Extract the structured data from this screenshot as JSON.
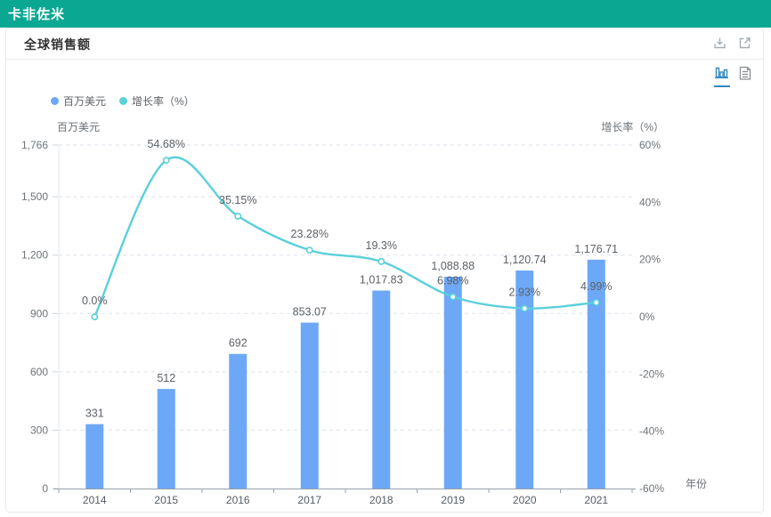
{
  "header": {
    "title": "卡非佐米"
  },
  "card": {
    "title": "全球销售额",
    "action_icons": [
      "download-icon",
      "external-link-icon"
    ],
    "toolbar_icons": [
      "bar-chart-icon",
      "data-view-icon"
    ]
  },
  "legend": [
    {
      "label": "百万美元",
      "color": "#6da8f7"
    },
    {
      "label": "增长率（%）",
      "color": "#5ad0da"
    }
  ],
  "colors": {
    "header_bg": "#0aa893",
    "bar": "#6da8f7",
    "line": "#5ad0da",
    "grid": "#dbe3ee",
    "left_axis_line": "#e2e8f2",
    "x_axis_line": "#98a0a8",
    "tick_text": "#6e7479",
    "label_text": "#5d6166",
    "active_icon": "#3389bd",
    "inactive_icon": "#8a9097"
  },
  "chart_data": {
    "type": "bar",
    "categories": [
      "2014",
      "2015",
      "2016",
      "2017",
      "2018",
      "2019",
      "2020",
      "2021"
    ],
    "series": [
      {
        "name": "百万美元",
        "type": "bar",
        "axis": "left",
        "color": "#6da8f7",
        "values": [
          331,
          512,
          692,
          853.07,
          1017.83,
          1088.88,
          1120.74,
          1176.71
        ],
        "labels": [
          "331",
          "512",
          "692",
          "853.07",
          "1,017.83",
          "1,088.88",
          "1,120.74",
          "1,176.71"
        ]
      },
      {
        "name": "增长率（%）",
        "type": "line",
        "axis": "right",
        "color": "#5ad0da",
        "values": [
          0.0,
          54.68,
          35.15,
          23.28,
          19.3,
          6.98,
          2.93,
          4.99
        ],
        "labels": [
          "0.0%",
          "54.68%",
          "35.15%",
          "23.28%",
          "19.3%",
          "6.98%",
          "2.93%",
          "4.99%"
        ]
      }
    ],
    "left_axis": {
      "name": "百万美元",
      "min": 0,
      "max": 1766,
      "tick_values": [
        0,
        300,
        600,
        900,
        1200,
        1500,
        1766
      ],
      "tick_labels": [
        "0",
        "300",
        "600",
        "900",
        "1,200",
        "1,500",
        "1,766"
      ]
    },
    "right_axis": {
      "name": "增长率（%）",
      "min": -60,
      "max": 60,
      "tick_values": [
        60,
        40,
        20,
        0,
        -20,
        -40,
        -60
      ],
      "tick_labels": [
        "60%",
        "40%",
        "20%",
        "0%",
        "-20%",
        "-40%",
        "-60%"
      ]
    },
    "x_axis": {
      "name": "年份"
    },
    "grid": true,
    "legend_position": "top-left"
  }
}
